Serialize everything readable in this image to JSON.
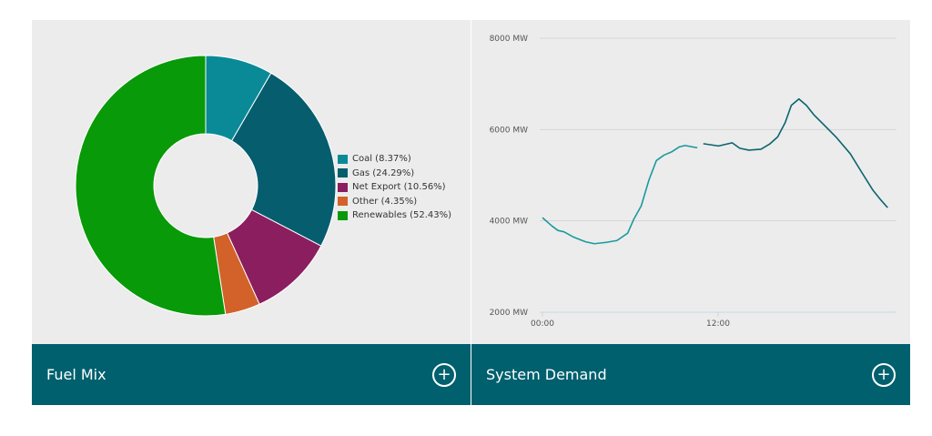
{
  "panels": {
    "fuel_mix": {
      "title": "Fuel Mix",
      "expand_label": "+"
    },
    "system_demand": {
      "title": "System Demand",
      "expand_label": "+"
    }
  },
  "chart_data": [
    {
      "type": "pie",
      "title": "Fuel Mix",
      "donut": true,
      "legend_position": "right",
      "slices": [
        {
          "name": "Coal",
          "label": "Coal (8.37%)",
          "value": 8.37,
          "color": "#0a8a96"
        },
        {
          "name": "Gas",
          "label": "Gas (24.29%)",
          "value": 24.29,
          "color": "#055d6e"
        },
        {
          "name": "Net Export",
          "label": "Net Export (10.56%)",
          "value": 10.56,
          "color": "#8b1e5e"
        },
        {
          "name": "Other",
          "label": "Other (4.35%)",
          "value": 4.35,
          "color": "#d2622a"
        },
        {
          "name": "Renewables",
          "label": "Renewables (52.43%)",
          "value": 52.43,
          "color": "#089a08"
        }
      ]
    },
    {
      "type": "line",
      "title": "System Demand",
      "xlabel": "",
      "ylabel": "",
      "ylim": [
        2000,
        8000
      ],
      "xlim_hours": [
        0,
        24
      ],
      "yticks": [
        {
          "v": 2000,
          "label": "2000 MW"
        },
        {
          "v": 4000,
          "label": "4000 MW"
        },
        {
          "v": 6000,
          "label": "6000 MW"
        },
        {
          "v": 8000,
          "label": "8000 MW"
        }
      ],
      "xticks": [
        {
          "v": 0,
          "label": "00:00"
        },
        {
          "v": 12,
          "label": "12:00"
        }
      ],
      "grid": true,
      "series": [
        {
          "name": "actual-early",
          "color": "#1a9a9e",
          "x": [
            0,
            0.64,
            1.06,
            1.47,
            2.09,
            2.92,
            3.54,
            4.37,
            5.09,
            5.82,
            6.23,
            6.75,
            7.27,
            7.78,
            8.3,
            8.82,
            9.34,
            9.75,
            10.58
          ],
          "y": [
            4070,
            3890,
            3790,
            3760,
            3650,
            3545,
            3500,
            3530,
            3570,
            3730,
            4030,
            4330,
            4890,
            5320,
            5440,
            5510,
            5620,
            5650,
            5600
          ]
        },
        {
          "name": "actual-late",
          "color": "#0b6470",
          "x": [
            10.99,
            12.03,
            12.96,
            13.48,
            14.1,
            14.93,
            15.55,
            16.07,
            16.58,
            17.0,
            17.52,
            18.03,
            18.55,
            19.27,
            20.1,
            21.03,
            21.76,
            22.58,
            23.11,
            23.58
          ],
          "y": [
            5690,
            5640,
            5710,
            5590,
            5550,
            5570,
            5690,
            5840,
            6150,
            6530,
            6670,
            6530,
            6320,
            6090,
            5820,
            5470,
            5090,
            4670,
            4460,
            4290
          ]
        }
      ]
    }
  ]
}
